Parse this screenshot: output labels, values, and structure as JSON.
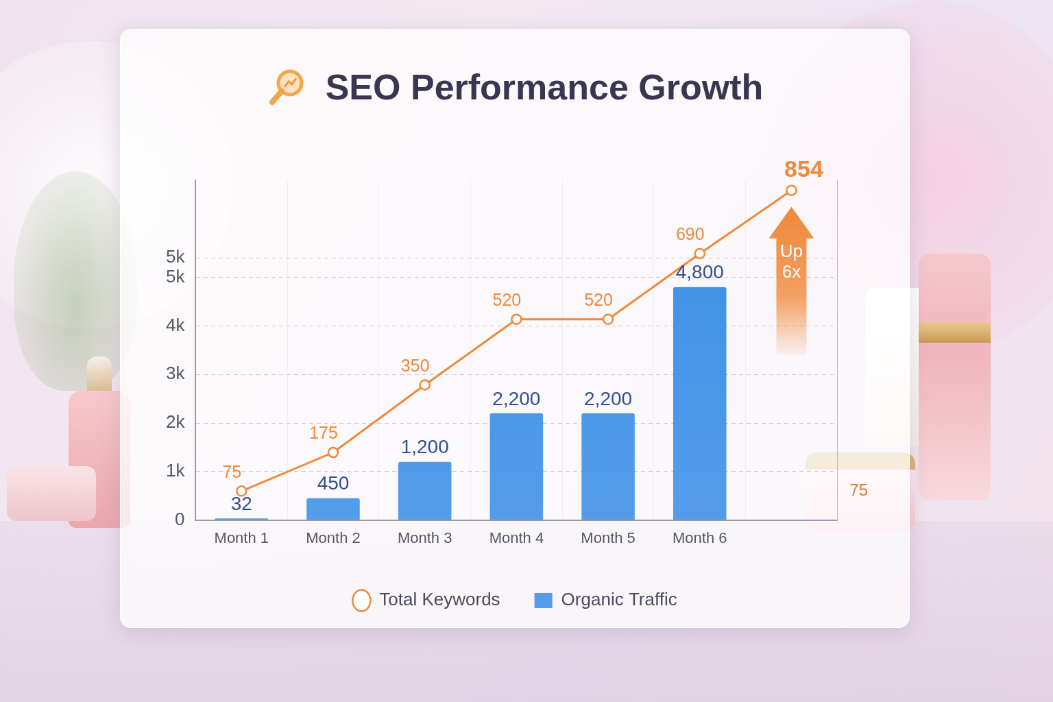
{
  "chart_data": {
    "type": "bar",
    "title": "SEO Performance Growth",
    "categories": [
      "Month 1",
      "Month 2",
      "Month 3",
      "Month 4",
      "Month 5",
      "Month 6",
      null
    ],
    "series": [
      {
        "name": "Organic Traffic",
        "type": "bar",
        "color": "#3a8ee6",
        "values": [
          32,
          450,
          1200,
          2200,
          2200,
          4800,
          null
        ],
        "value_labels": [
          "32",
          "450",
          "1,200",
          "2,200",
          "2,200",
          "4,800",
          null
        ]
      },
      {
        "name": "Total Keywords",
        "type": "line",
        "color": "#f0883a",
        "axis": "y2",
        "marker": "circle",
        "line_style": "solid",
        "values": [
          75,
          175,
          350,
          520,
          520,
          690,
          854
        ]
      }
    ],
    "ylim": [
      0,
      7000
    ],
    "yticks": [
      0,
      {
        "value": 1000,
        "label": "1k"
      },
      {
        "value": 2000,
        "label": "2k"
      },
      {
        "value": 3000,
        "label": "3k"
      },
      {
        "value": 4000,
        "label": "4k"
      },
      {
        "value": 5000,
        "label": "5k"
      },
      {
        "value": 5400,
        "label": "5k"
      }
    ],
    "y2lim": [
      0,
      880
    ],
    "y2ticks": [
      75
    ],
    "grid": true,
    "legend": "bottom",
    "data_labels": true,
    "annotation": "Up 6x"
  }
}
